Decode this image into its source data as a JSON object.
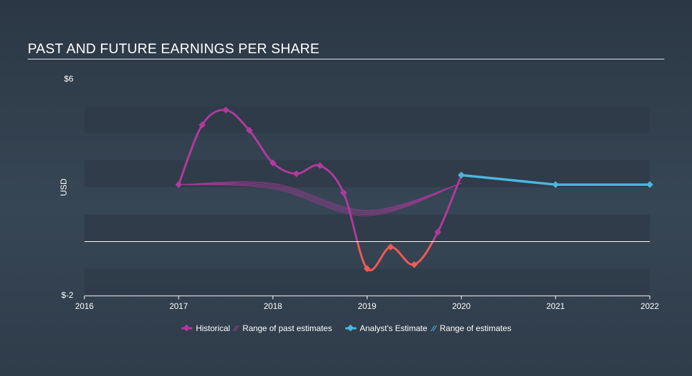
{
  "chart_data": {
    "type": "line",
    "title": "PAST AND FUTURE EARNINGS PER SHARE",
    "ylabel": "USD",
    "y_tick_labels": [
      "$6",
      "$-2"
    ],
    "ylim": [
      -2,
      6
    ],
    "xlim": [
      2016,
      2022
    ],
    "x_ticks": [
      "2016",
      "2017",
      "2018",
      "2019",
      "2020",
      "2021",
      "2022"
    ],
    "series": [
      {
        "name": "Historical",
        "color": "#b13a9e",
        "negative_color": "#f25a55",
        "points": [
          {
            "x": 2017.0,
            "y": 2.1
          },
          {
            "x": 2017.25,
            "y": 4.3
          },
          {
            "x": 2017.5,
            "y": 4.85
          },
          {
            "x": 2017.75,
            "y": 4.1
          },
          {
            "x": 2018.0,
            "y": 2.9
          },
          {
            "x": 2018.25,
            "y": 2.5
          },
          {
            "x": 2018.5,
            "y": 2.8
          },
          {
            "x": 2018.75,
            "y": 1.8
          },
          {
            "x": 2019.0,
            "y": -1.0
          },
          {
            "x": 2019.25,
            "y": -0.2
          },
          {
            "x": 2019.5,
            "y": -0.85
          },
          {
            "x": 2019.75,
            "y": 0.35
          },
          {
            "x": 2020.0,
            "y": 2.45
          }
        ]
      },
      {
        "name": "Range of past estimates",
        "color": "#b13a9e",
        "points": [
          {
            "x": 2017.0,
            "y": 2.1
          },
          {
            "x": 2018.0,
            "y": 1.95
          },
          {
            "x": 2019.0,
            "y": 0.95
          },
          {
            "x": 2020.0,
            "y": 2.15
          }
        ]
      },
      {
        "name": "Analyst's Estimate",
        "color": "#4bb7df",
        "points": [
          {
            "x": 2020.0,
            "y": 2.45
          },
          {
            "x": 2021.0,
            "y": 2.1
          },
          {
            "x": 2022.0,
            "y": 2.1
          }
        ]
      },
      {
        "name": "Range of estimates",
        "color": "#4bb7df",
        "points": []
      }
    ],
    "legend_placement": "bottom"
  },
  "colors": {
    "historical": "#b13a9e",
    "historical_negative": "#f25a55",
    "estimate": "#4bb7df",
    "band": "#2f3b48"
  }
}
